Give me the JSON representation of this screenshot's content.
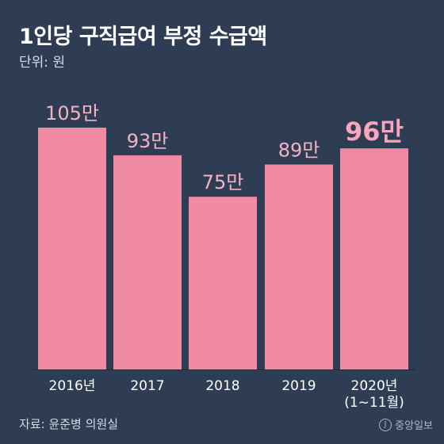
{
  "header": {
    "title": "1인당 구직급여 부정 수급액",
    "unit": "단위: 원"
  },
  "footer": {
    "source": "자료: 윤준병 의원실",
    "logo_mark": "J",
    "logo_text": "중앙일보"
  },
  "colors": {
    "background": "#2f3d54",
    "bar": "#f08aa3",
    "label": "#f4b3c3",
    "highlight_label": "#f8a6bb",
    "axis_label": "#ffffff"
  },
  "chart_data": {
    "type": "bar",
    "categories": [
      "2016년",
      "2017",
      "2018",
      "2019",
      "2020년\n(1~11월)"
    ],
    "values": [
      105,
      93,
      75,
      89,
      96
    ],
    "data_labels": [
      "105만",
      "93만",
      "75만",
      "89만",
      "96만"
    ],
    "highlight_index": 4,
    "ylim": [
      0,
      110
    ],
    "grid": false,
    "legend": "none"
  }
}
